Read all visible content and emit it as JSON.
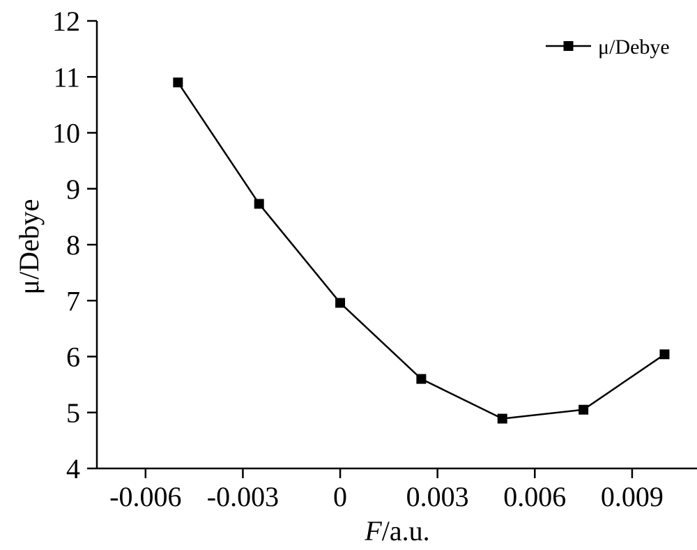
{
  "chart_data": {
    "type": "line",
    "title": "",
    "xlabel_italic": "F",
    "xlabel_rest": "/a.u.",
    "ylabel": "μ/Debye",
    "xlim": [
      -0.0075,
      0.011
    ],
    "ylim": [
      4,
      12
    ],
    "xticks": [
      -0.006,
      -0.003,
      0,
      0.003,
      0.006,
      0.009
    ],
    "xtick_labels": [
      "-0.006",
      "-0.003",
      "0",
      "0.003",
      "0.006",
      "0.009"
    ],
    "yticks": [
      4,
      5,
      6,
      7,
      8,
      9,
      10,
      11,
      12
    ],
    "ytick_labels": [
      "4",
      "5",
      "6",
      "7",
      "8",
      "9",
      "10",
      "11",
      "12"
    ],
    "grid": false,
    "legend_position": "top-right",
    "series": [
      {
        "name": "μ/Debye",
        "marker": "square",
        "color": "#000000",
        "x": [
          -0.005,
          -0.0025,
          0,
          0.0025,
          0.005,
          0.0075,
          0.01
        ],
        "y": [
          10.9,
          8.73,
          6.96,
          5.6,
          4.89,
          5.05,
          6.04
        ]
      }
    ]
  }
}
